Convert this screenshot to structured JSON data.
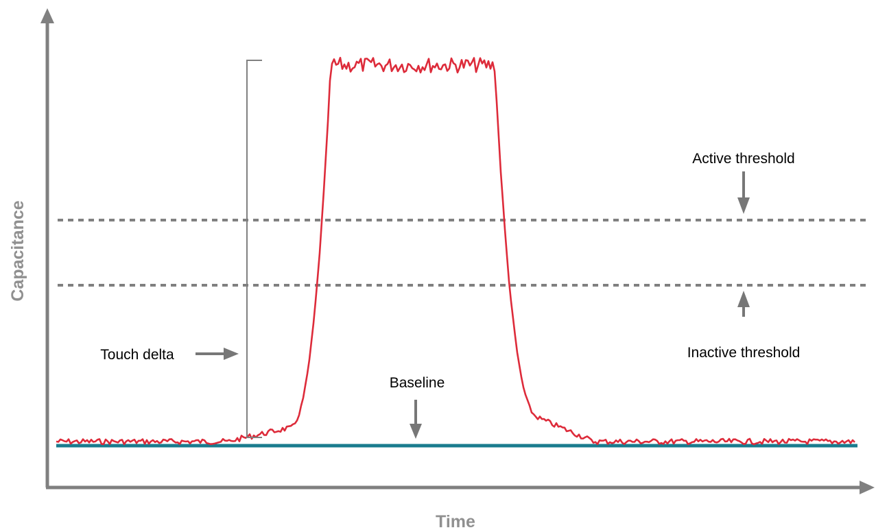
{
  "axes": {
    "x_label": "Time",
    "y_label": "Capacitance"
  },
  "annotations": {
    "active_threshold": "Active threshold",
    "inactive_threshold": "Inactive threshold",
    "touch_delta": "Touch delta",
    "baseline": "Baseline"
  },
  "colors": {
    "signal": "#dd2b3a",
    "baseline": "#1a7c8e",
    "axes": "#808080",
    "thresholds": "#808080"
  }
}
